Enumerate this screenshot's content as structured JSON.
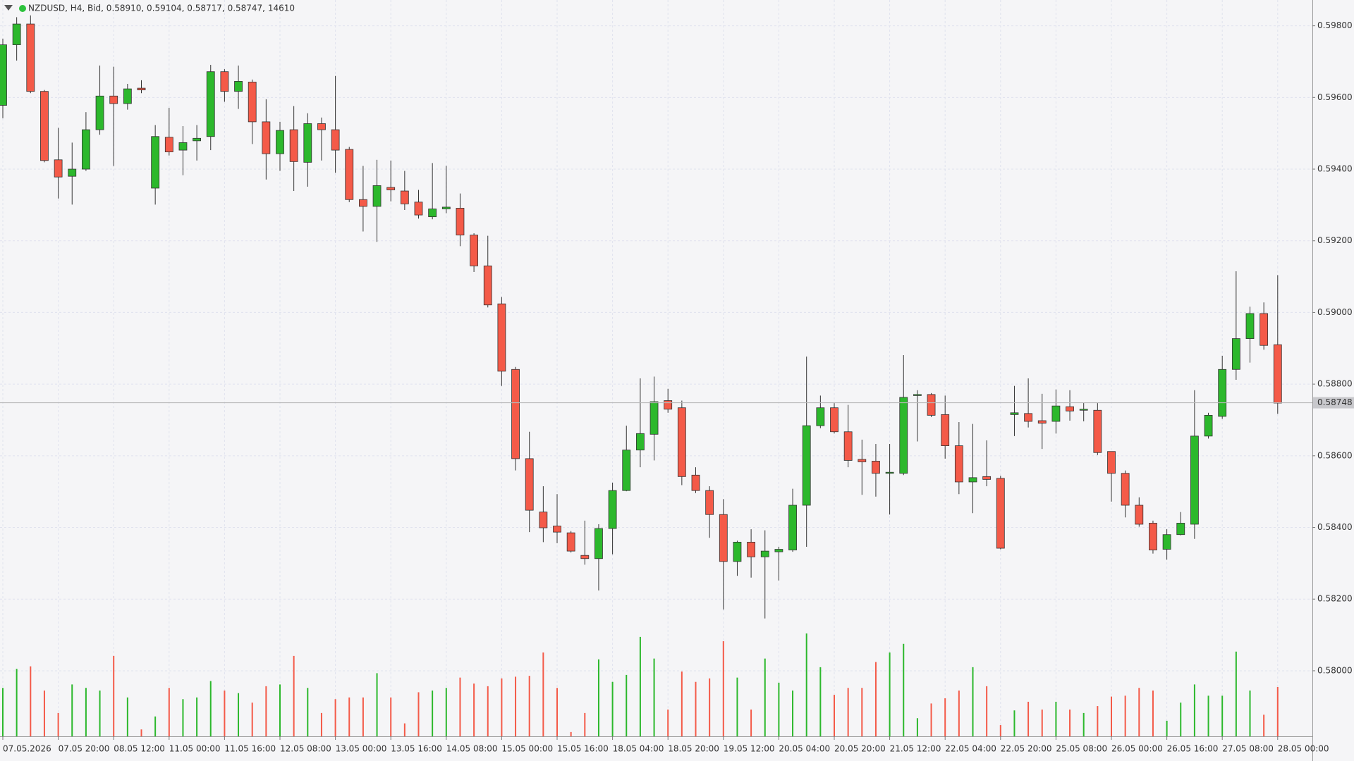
{
  "chart_data": {
    "type": "candlestick",
    "title": "NZDUSD, H4, Bid, 0.58910, 0.59104, 0.58717, 0.58747, 14610",
    "categories": [
      "07.05.2026",
      null,
      null,
      null,
      "07.05 20:00",
      null,
      null,
      null,
      "08.05 12:00",
      null,
      null,
      null,
      "11.05 00:00",
      null,
      null,
      null,
      "11.05 16:00",
      null,
      null,
      null,
      "12.05 08:00",
      null,
      null,
      null,
      "13.05 00:00",
      null,
      null,
      null,
      "13.05 16:00",
      null,
      null,
      null,
      "14.05 08:00",
      null,
      null,
      null,
      "15.05 00:00",
      null,
      null,
      null,
      "15.05 16:00",
      null,
      null,
      null,
      "18.05 04:00",
      null,
      null,
      null,
      "18.05 20:00",
      null,
      null,
      null,
      "19.05 12:00",
      null,
      null,
      null,
      "20.05 04:00",
      null,
      null,
      null,
      "20.05 20:00",
      null,
      null,
      null,
      "21.05 12:00",
      null,
      null,
      null,
      "22.05 04:00",
      null,
      null,
      null,
      "22.05 20:00",
      null,
      null,
      null,
      "25.05 08:00",
      null,
      null,
      null,
      "26.05 00:00",
      null,
      null,
      null,
      "26.05 16:00",
      null,
      null,
      null,
      "27.05 08:00",
      null,
      null,
      null,
      "28.05 00:00"
    ],
    "open": [
      0.59578,
      0.59747,
      0.59805,
      0.59617,
      0.59426,
      0.5938,
      0.594,
      0.5951,
      0.59604,
      0.59583,
      0.59626,
      0.59347,
      0.59489,
      0.59453,
      0.59479,
      0.59491,
      0.59672,
      0.59617,
      0.59643,
      0.59532,
      0.59443,
      0.5951,
      0.59419,
      0.59527,
      0.5951,
      0.59455,
      0.59315,
      0.59296,
      0.59349,
      0.59339,
      0.59308,
      0.59267,
      0.59289,
      0.59291,
      0.59216,
      0.5913,
      0.59024,
      0.58841,
      0.58592,
      0.58443,
      0.58404,
      0.58385,
      0.58322,
      0.58313,
      0.58397,
      0.58503,
      0.58616,
      0.5866,
      0.58754,
      0.58734,
      0.58546,
      0.58503,
      0.58436,
      0.58305,
      0.58359,
      0.58318,
      0.58332,
      0.58337,
      0.58462,
      0.58684,
      0.58734,
      0.58667,
      0.5859,
      0.58585,
      0.58551,
      0.58551,
      0.58768,
      0.58771,
      0.58715,
      0.58628,
      0.58527,
      0.58542,
      0.58537,
      0.58715,
      0.58718,
      0.58698,
      0.58696,
      0.58737,
      0.58727,
      0.58727,
      0.58612,
      0.58551,
      0.58462,
      0.58412,
      0.58339,
      0.5838,
      0.58409,
      0.58655,
      0.5871,
      0.58841,
      0.58927,
      0.58997,
      0.5891
    ],
    "high": [
      0.59764,
      0.59824,
      0.59829,
      0.59621,
      0.59515,
      0.59474,
      0.59559,
      0.59689,
      0.59686,
      0.59638,
      0.59648,
      0.59523,
      0.59571,
      0.5952,
      0.59523,
      0.59691,
      0.59679,
      0.59689,
      0.5965,
      0.59595,
      0.59532,
      0.59576,
      0.59556,
      0.59544,
      0.5966,
      0.59462,
      0.59409,
      0.59426,
      0.59424,
      0.59395,
      0.59342,
      0.59417,
      0.59409,
      0.59332,
      0.59221,
      0.59214,
      0.59043,
      0.58848,
      0.58667,
      0.58515,
      0.58493,
      0.5839,
      0.58419,
      0.58409,
      0.58525,
      0.58684,
      0.58816,
      0.58821,
      0.58787,
      0.58754,
      0.58568,
      0.58515,
      0.58479,
      0.58363,
      0.58395,
      0.58392,
      0.58346,
      0.58508,
      0.58877,
      0.58768,
      0.58747,
      0.58742,
      0.58645,
      0.58633,
      0.58633,
      0.58881,
      0.58783,
      0.58775,
      0.58768,
      0.58694,
      0.58689,
      0.58643,
      0.58544,
      0.58795,
      0.58816,
      0.58773,
      0.58785,
      0.58783,
      0.58749,
      0.58747,
      0.58612,
      0.58559,
      0.58484,
      0.58419,
      0.58395,
      0.58443,
      0.58783,
      0.5872,
      0.58879,
      0.59115,
      0.59016,
      0.59028,
      0.59104
    ],
    "low": [
      0.59542,
      0.59703,
      0.59612,
      0.59419,
      0.59318,
      0.59301,
      0.59395,
      0.59496,
      0.59409,
      0.59566,
      0.59612,
      0.59301,
      0.59438,
      0.59383,
      0.59424,
      0.59453,
      0.59588,
      0.59568,
      0.5947,
      0.59371,
      0.59395,
      0.59339,
      0.59351,
      0.59424,
      0.5939,
      0.59308,
      0.59226,
      0.59197,
      0.5931,
      0.59286,
      0.59262,
      0.5926,
      0.59277,
      0.59185,
      0.59113,
      0.59014,
      0.58795,
      0.58559,
      0.58387,
      0.58359,
      0.58356,
      0.5833,
      0.58296,
      0.58224,
      0.58325,
      0.58501,
      0.58568,
      0.58587,
      0.5872,
      0.58518,
      0.58496,
      0.58371,
      0.58171,
      0.58265,
      0.5826,
      0.58146,
      0.58252,
      0.58332,
      0.58346,
      0.58677,
      0.58662,
      0.58568,
      0.58491,
      0.58486,
      0.58436,
      0.58546,
      0.5864,
      0.58708,
      0.58592,
      0.58493,
      0.5844,
      0.58515,
      0.58339,
      0.58655,
      0.58679,
      0.58619,
      0.58662,
      0.58698,
      0.58696,
      0.58602,
      0.58472,
      0.58428,
      0.58402,
      0.58327,
      0.5831,
      0.58378,
      0.58368,
      0.58648,
      0.58703,
      0.58812,
      0.5886,
      0.58896,
      0.58717
    ],
    "close": [
      0.59747,
      0.59805,
      0.59617,
      0.59424,
      0.59378,
      0.594,
      0.5951,
      0.59604,
      0.59583,
      0.59624,
      0.59621,
      0.59491,
      0.59448,
      0.59474,
      0.59486,
      0.59672,
      0.59617,
      0.59645,
      0.59532,
      0.59443,
      0.59508,
      0.59421,
      0.59527,
      0.5951,
      0.59453,
      0.59315,
      0.59296,
      0.59354,
      0.59342,
      0.59303,
      0.59272,
      0.59289,
      0.59294,
      0.59216,
      0.5913,
      0.59021,
      0.58836,
      0.58592,
      0.58448,
      0.58399,
      0.58387,
      0.58334,
      0.58313,
      0.58397,
      0.58503,
      0.58616,
      0.58662,
      0.58751,
      0.5873,
      0.58542,
      0.58503,
      0.58436,
      0.58305,
      0.58359,
      0.58318,
      0.58334,
      0.58339,
      0.58462,
      0.58684,
      0.58734,
      0.58667,
      0.58587,
      0.58583,
      0.58551,
      0.58554,
      0.58763,
      0.58771,
      0.58713,
      0.58628,
      0.58527,
      0.58539,
      0.58534,
      0.58342,
      0.5872,
      0.58696,
      0.58691,
      0.58739,
      0.58725,
      0.5873,
      0.58609,
      0.58551,
      0.58462,
      0.58409,
      0.58337,
      0.5838,
      0.58412,
      0.58655,
      0.58713,
      0.58841,
      0.58927,
      0.58997,
      0.58908,
      0.58747
    ],
    "volume": [
      14336,
      19968,
      20736,
      13568,
      6912,
      15360,
      14336,
      13568,
      23808,
      11520,
      2048,
      5888,
      14336,
      11008,
      11520,
      16384,
      13568,
      12800,
      9984,
      14848,
      15360,
      23808,
      14336,
      6912,
      11008,
      11520,
      11520,
      18688,
      11520,
      3840,
      13056,
      13568,
      14336,
      17408,
      15616,
      14848,
      17152,
      17664,
      17920,
      24832,
      14336,
      1280,
      6912,
      22784,
      16128,
      18176,
      29440,
      23040,
      7936,
      19200,
      16128,
      17152,
      28160,
      17408,
      7936,
      23040,
      15872,
      13568,
      30464,
      20480,
      12288,
      14336,
      14336,
      22016,
      24832,
      27392,
      5376,
      9728,
      11264,
      13568,
      20480,
      14848,
      3328,
      7680,
      10240,
      7936,
      10240,
      7936,
      6912,
      8960,
      11776,
      12032,
      14336,
      13568,
      4608,
      9984,
      15360,
      12032,
      12032,
      25088,
      13568,
      6400,
      14610
    ],
    "ylim": [
      0.57817,
      0.59872
    ],
    "yticks": [
      {
        "value": 0.58,
        "label": "0.58000"
      },
      {
        "value": 0.582,
        "label": "0.58200"
      },
      {
        "value": 0.584,
        "label": "0.58400"
      },
      {
        "value": 0.586,
        "label": "0.58600"
      },
      {
        "value": 0.588,
        "label": "0.58800"
      },
      {
        "value": 0.59,
        "label": "0.59000"
      },
      {
        "value": 0.592,
        "label": "0.59200"
      },
      {
        "value": 0.594,
        "label": "0.59400"
      },
      {
        "value": 0.596,
        "label": "0.59600"
      },
      {
        "value": 0.598,
        "label": "0.59800"
      }
    ],
    "price_line": 0.58748,
    "up_color": "#2cb82c",
    "down_color": "#f45a48",
    "grid": true
  }
}
